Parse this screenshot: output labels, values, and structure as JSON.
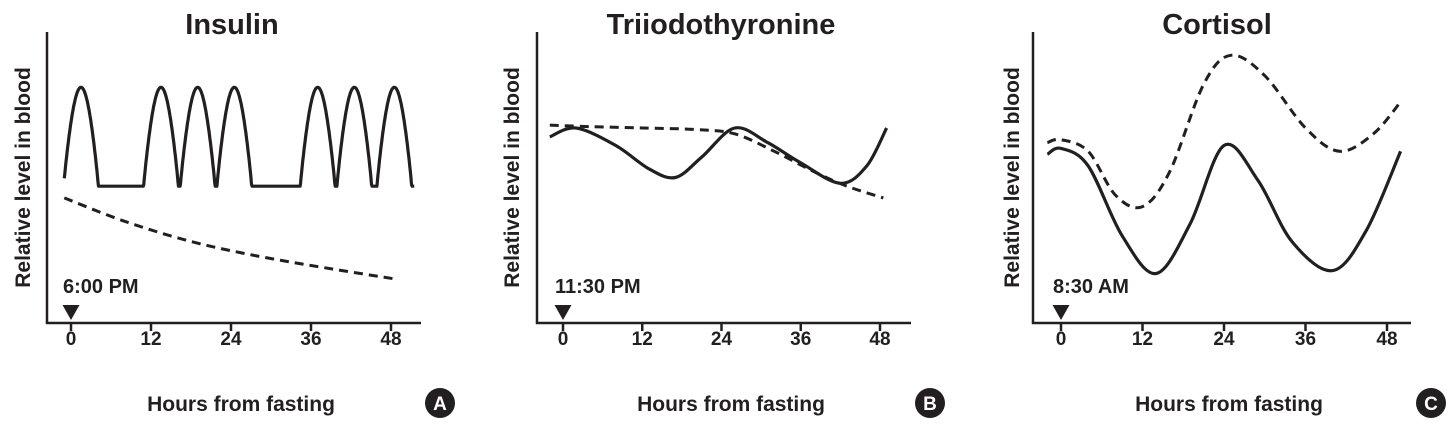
{
  "chart_data": [
    {
      "type": "line",
      "panel": "A",
      "title": "Insulin",
      "xlabel": "Hours from fasting",
      "ylabel": "Relative level in blood",
      "xticks": [
        "0",
        "12",
        "24",
        "36",
        "48"
      ],
      "xlim": [
        -3,
        51
      ],
      "ylim": [
        0,
        100
      ],
      "event_label": "6:00 PM",
      "event_x": 0,
      "series": [
        {
          "name": "pulsatile",
          "style": "solid",
          "baseline": 47,
          "peak": 81,
          "x_start": -1,
          "x_end": 51.5,
          "peaks": [
            1.5,
            13.5,
            19,
            24.5,
            37,
            42.5,
            48.5
          ],
          "pulse_width": 2.6
        },
        {
          "name": "trend",
          "style": "dashed",
          "x": [
            -1,
            8,
            18,
            28,
            38,
            49
          ],
          "y": [
            43,
            35,
            28,
            23,
            19,
            15
          ]
        }
      ]
    },
    {
      "type": "line",
      "panel": "B",
      "title": "Triiodothyronine",
      "xlabel": "Hours from fasting",
      "ylabel": "Relative level in blood",
      "xticks": [
        "0",
        "12",
        "24",
        "36",
        "48"
      ],
      "xlim": [
        -3,
        51
      ],
      "ylim": [
        0,
        100
      ],
      "event_label": "11:30 PM",
      "event_x": 0,
      "series": [
        {
          "name": "solid",
          "style": "solid",
          "x": [
            -2,
            2,
            8,
            13,
            17,
            21,
            26,
            31,
            36,
            42,
            46,
            49
          ],
          "y": [
            64,
            67,
            61,
            53,
            50,
            57,
            67,
            62,
            55,
            48,
            54,
            67
          ]
        },
        {
          "name": "dashed",
          "style": "dashed",
          "x": [
            -2,
            4,
            12,
            20,
            26,
            32,
            38,
            43,
            48.5
          ],
          "y": [
            68,
            67.5,
            67,
            66.5,
            65,
            59,
            52,
            47,
            43
          ]
        }
      ]
    },
    {
      "type": "line",
      "panel": "C",
      "title": "Cortisol",
      "xlabel": "Hours from fasting",
      "ylabel": "Relative level in blood",
      "xticks": [
        "0",
        "12",
        "24",
        "36",
        "48"
      ],
      "xlim": [
        -3,
        51
      ],
      "ylim": [
        0,
        100
      ],
      "event_label": "8:30 AM",
      "event_x": 0,
      "series": [
        {
          "name": "solid",
          "style": "solid",
          "x": [
            -2,
            0,
            4,
            9,
            14,
            19,
            24,
            29,
            34,
            40,
            45,
            50
          ],
          "y": [
            58,
            60,
            54,
            30,
            17,
            34,
            61,
            49,
            28,
            18,
            32,
            59
          ]
        },
        {
          "name": "dashed",
          "style": "dashed",
          "x": [
            -2,
            0,
            4,
            8,
            12,
            16,
            21,
            25,
            30,
            36,
            41,
            46,
            50
          ],
          "y": [
            62,
            63,
            59,
            44,
            40,
            52,
            82,
            92,
            85,
            67,
            59,
            65,
            76
          ]
        }
      ]
    }
  ]
}
